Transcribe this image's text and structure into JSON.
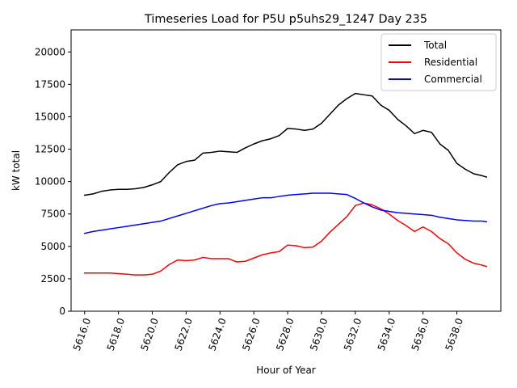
{
  "chart_data": {
    "type": "line",
    "title": "Timeseries Load for P5U p5uhs29_1247  Day 235",
    "xlabel": "Hour of Year",
    "ylabel": "kW total",
    "xlim": [
      5615.2,
      5640.6
    ],
    "ylim": [
      0,
      21700
    ],
    "x_tick_values": [
      5616,
      5618,
      5620,
      5622,
      5624,
      5626,
      5628,
      5630,
      5632,
      5634,
      5636,
      5638
    ],
    "x_tick_labels": [
      "5616.0",
      "5618.0",
      "5620.0",
      "5622.0",
      "5624.0",
      "5626.0",
      "5628.0",
      "5630.0",
      "5632.0",
      "5634.0",
      "5636.0",
      "5638.0"
    ],
    "x_tick_rotation_deg": 70,
    "y_tick_values": [
      0,
      2500,
      5000,
      7500,
      10000,
      12500,
      15000,
      17500,
      20000
    ],
    "y_tick_labels": [
      "0",
      "2500",
      "5000",
      "7500",
      "10000",
      "12500",
      "15000",
      "17500",
      "20000"
    ],
    "grid": false,
    "legend_position": "top-right",
    "x": [
      5616.0,
      5616.5,
      5617.0,
      5617.5,
      5618.0,
      5618.5,
      5619.0,
      5619.5,
      5620.0,
      5620.5,
      5621.0,
      5621.5,
      5622.0,
      5622.5,
      5623.0,
      5623.5,
      5624.0,
      5624.5,
      5625.0,
      5625.5,
      5626.0,
      5626.5,
      5627.0,
      5627.5,
      5628.0,
      5628.5,
      5629.0,
      5629.5,
      5630.0,
      5630.5,
      5631.0,
      5631.5,
      5632.0,
      5632.5,
      5633.0,
      5633.5,
      5634.0,
      5634.5,
      5635.0,
      5635.5,
      5636.0,
      5636.5,
      5637.0,
      5637.5,
      5638.0,
      5638.5,
      5639.0,
      5639.5,
      5639.75
    ],
    "series": [
      {
        "name": "Total",
        "color": "#000000",
        "values": [
          8950,
          9050,
          9250,
          9350,
          9400,
          9400,
          9450,
          9550,
          9750,
          10000,
          10700,
          11300,
          11550,
          11650,
          12200,
          12250,
          12350,
          12300,
          12250,
          12600,
          12900,
          13150,
          13300,
          13550,
          14100,
          14050,
          13950,
          14050,
          14500,
          15200,
          15900,
          16400,
          16800,
          16700,
          16600,
          15900,
          15500,
          14800,
          14300,
          13700,
          13950,
          13800,
          12900,
          12400,
          11400,
          10950,
          10600,
          10450,
          10350
        ]
      },
      {
        "name": "Residential",
        "color": "#ff0000",
        "values": [
          2950,
          2950,
          2950,
          2950,
          2900,
          2850,
          2800,
          2800,
          2850,
          3100,
          3600,
          3950,
          3900,
          3950,
          4150,
          4050,
          4050,
          4050,
          3800,
          3850,
          4100,
          4350,
          4500,
          4600,
          5100,
          5050,
          4900,
          4950,
          5400,
          6100,
          6700,
          7300,
          8150,
          8350,
          8200,
          7900,
          7500,
          7000,
          6600,
          6150,
          6500,
          6150,
          5600,
          5200,
          4500,
          4000,
          3700,
          3550,
          3450
        ]
      },
      {
        "name": "Commercial",
        "color": "#0000ff",
        "values": [
          6000,
          6150,
          6250,
          6350,
          6450,
          6550,
          6650,
          6750,
          6850,
          6950,
          7150,
          7350,
          7550,
          7750,
          7950,
          8150,
          8300,
          8350,
          8450,
          8550,
          8650,
          8750,
          8750,
          8850,
          8950,
          9000,
          9050,
          9100,
          9100,
          9100,
          9050,
          9000,
          8700,
          8350,
          8050,
          7800,
          7700,
          7600,
          7550,
          7500,
          7450,
          7400,
          7250,
          7150,
          7050,
          7000,
          6950,
          6950,
          6900
        ]
      }
    ]
  }
}
